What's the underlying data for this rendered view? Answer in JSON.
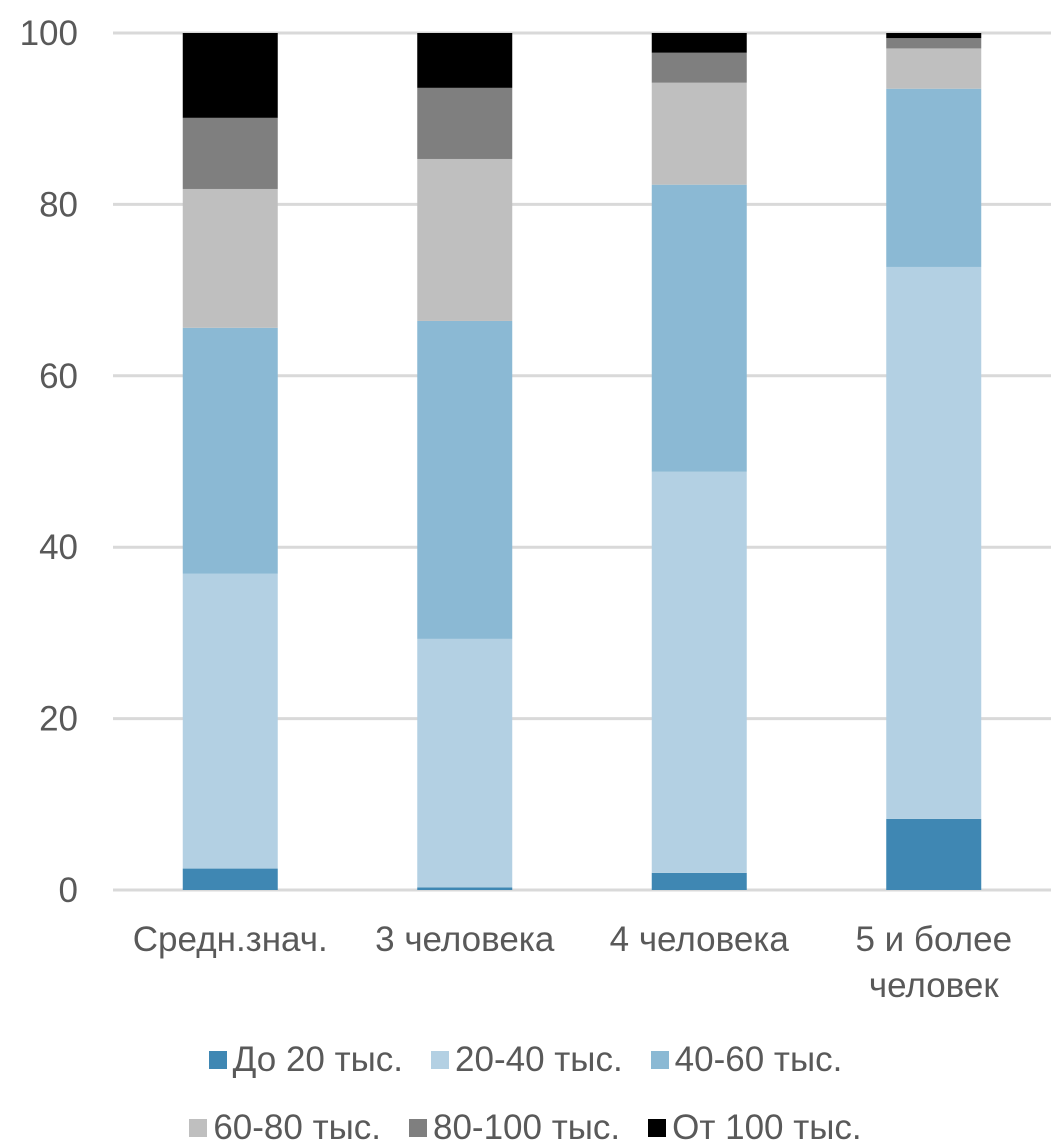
{
  "chart_data": {
    "type": "bar",
    "stacked": true,
    "title": "",
    "xlabel": "",
    "ylabel": "",
    "ylim": [
      0,
      100
    ],
    "yticks": [
      0,
      20,
      40,
      60,
      80,
      100
    ],
    "grid": true,
    "legend_position": "bottom",
    "categories": [
      "Средн.знач.",
      "3 человека",
      "4 человека",
      "5 и более человек"
    ],
    "category_lines": [
      [
        "Средн.знач."
      ],
      [
        "3 человека"
      ],
      [
        "4 человека"
      ],
      [
        "5 и более",
        "человек"
      ]
    ],
    "series": [
      {
        "name": "До 20 тыс.",
        "color": "#3f87b3",
        "values": [
          2.5,
          0.3,
          2.0,
          8.3
        ]
      },
      {
        "name": "20-40 тыс.",
        "color": "#b3d0e3",
        "values": [
          34.4,
          29.0,
          46.8,
          64.4
        ]
      },
      {
        "name": "40-60 тыс.",
        "color": "#8bb9d4",
        "values": [
          28.7,
          37.1,
          33.5,
          20.8
        ]
      },
      {
        "name": "60-80 тыс.",
        "color": "#bfbfbf",
        "values": [
          16.2,
          18.9,
          11.9,
          4.7
        ]
      },
      {
        "name": "80-100 тыс.",
        "color": "#7f7f7f",
        "values": [
          8.3,
          8.3,
          3.5,
          1.2
        ]
      },
      {
        "name": "От 100 тыс.",
        "color": "#000000",
        "values": [
          9.9,
          6.4,
          2.3,
          0.6
        ]
      }
    ]
  }
}
